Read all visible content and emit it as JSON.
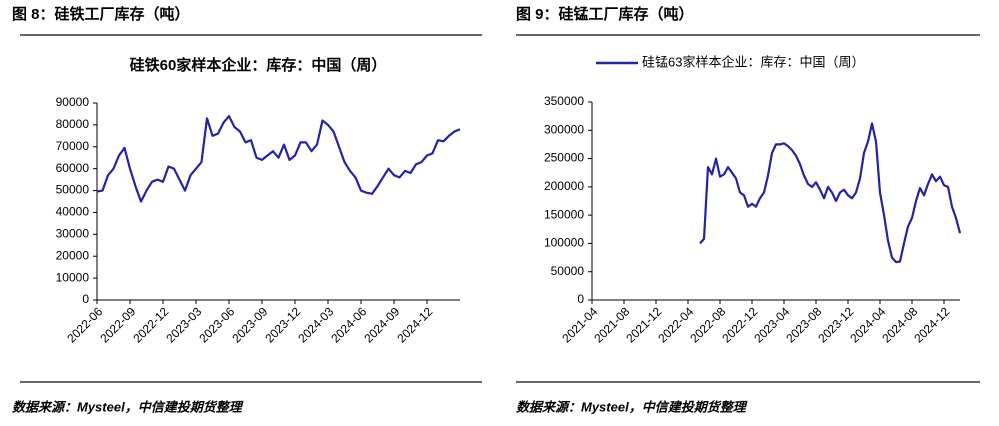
{
  "captions": [
    "图 8：硅铁工厂库存（吨）",
    "图 9：硅锰工厂库存（吨）"
  ],
  "sources": [
    "数据来源：Mysteel，中信建投期货整理",
    "数据来源：Mysteel，中信建投期货整理"
  ],
  "chart_data": [
    {
      "type": "line",
      "title": "硅铁60家样本企业：库存：中国（周）",
      "categories": [
        "2022-06",
        null,
        null,
        null,
        null,
        null,
        "2022-09",
        null,
        null,
        null,
        null,
        null,
        "2022-12",
        null,
        null,
        null,
        null,
        null,
        "2023-03",
        null,
        null,
        null,
        null,
        null,
        "2023-06",
        null,
        null,
        null,
        null,
        null,
        "2023-09",
        null,
        null,
        null,
        null,
        null,
        "2023-12",
        null,
        null,
        null,
        null,
        null,
        "2024-03",
        null,
        null,
        null,
        null,
        null,
        "2024-06",
        null,
        null,
        null,
        null,
        null,
        "2024-09",
        null,
        null,
        null,
        null,
        null,
        "2024-12",
        null,
        null,
        null,
        null,
        null,
        null
      ],
      "series": [
        {
          "name": null,
          "color": "#2323a5",
          "values": [
            49500,
            50000,
            57000,
            60000,
            66000,
            69500,
            60000,
            52000,
            45000,
            50000,
            54000,
            55000,
            54000,
            61000,
            60000,
            55000,
            50000,
            57000,
            60000,
            63000,
            83000,
            75000,
            76000,
            81000,
            84000,
            79000,
            77000,
            72000,
            73000,
            65000,
            64000,
            66000,
            68000,
            65000,
            71000,
            64000,
            66000,
            72000,
            72000,
            68000,
            71000,
            82000,
            80000,
            77000,
            70000,
            63000,
            59000,
            56000,
            50000,
            49000,
            48500,
            52000,
            56000,
            60000,
            57000,
            56000,
            59000,
            58000,
            62000,
            63000,
            66000,
            67000,
            73000,
            72500,
            75000,
            77000,
            78000
          ]
        }
      ],
      "ylim": [
        0,
        90000
      ],
      "yticks": [
        0,
        10000,
        20000,
        30000,
        40000,
        50000,
        60000,
        70000,
        80000,
        90000
      ],
      "legend": "none"
    },
    {
      "type": "line",
      "categories": [
        "2021-04",
        null,
        null,
        null,
        null,
        null,
        null,
        null,
        "2021-08",
        null,
        null,
        null,
        null,
        null,
        null,
        null,
        "2021-12",
        null,
        null,
        null,
        null,
        null,
        null,
        null,
        "2022-04",
        null,
        null,
        null,
        null,
        null,
        null,
        null,
        "2022-08",
        null,
        null,
        null,
        null,
        null,
        null,
        null,
        "2022-12",
        null,
        null,
        null,
        null,
        null,
        null,
        null,
        "2023-04",
        null,
        null,
        null,
        null,
        null,
        null,
        null,
        "2023-08",
        null,
        null,
        null,
        null,
        null,
        null,
        null,
        "2023-12",
        null,
        null,
        null,
        null,
        null,
        null,
        null,
        "2024-04",
        null,
        null,
        null,
        null,
        null,
        null,
        null,
        "2024-08",
        null,
        null,
        null,
        null,
        null,
        null,
        null,
        "2024-12",
        null,
        null,
        null,
        null
      ],
      "series": [
        {
          "name": "硅锰63家样本企业：库存：中国（周）",
          "color": "#2323a5",
          "values": [
            null,
            null,
            null,
            null,
            null,
            null,
            null,
            null,
            null,
            null,
            null,
            null,
            null,
            null,
            null,
            null,
            null,
            null,
            null,
            null,
            null,
            null,
            null,
            null,
            null,
            null,
            null,
            100000,
            108000,
            235000,
            222000,
            250000,
            218000,
            222000,
            235000,
            225000,
            215000,
            190000,
            185000,
            165000,
            170000,
            165000,
            180000,
            190000,
            220000,
            260000,
            275000,
            275000,
            277000,
            272000,
            265000,
            255000,
            240000,
            220000,
            205000,
            200000,
            208000,
            195000,
            180000,
            200000,
            190000,
            175000,
            190000,
            195000,
            185000,
            180000,
            190000,
            215000,
            260000,
            280000,
            312000,
            280000,
            190000,
            150000,
            105000,
            75000,
            67000,
            68000,
            100000,
            130000,
            145000,
            175000,
            198000,
            185000,
            205000,
            222000,
            210000,
            218000,
            203000,
            200000,
            165000,
            145000,
            118000
          ]
        }
      ],
      "ylim": [
        0,
        350000
      ],
      "yticks": [
        0,
        50000,
        100000,
        150000,
        200000,
        250000,
        300000,
        350000
      ],
      "legend": "top-left"
    }
  ]
}
